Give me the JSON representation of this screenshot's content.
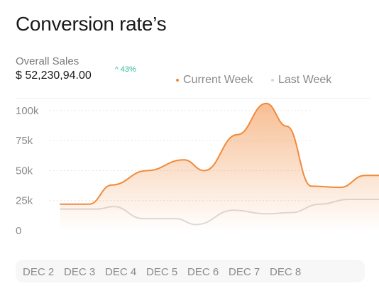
{
  "header": {
    "title": "Conversion rate’s",
    "sales_label": "Overall Sales",
    "sales_value": "$ 52,230,94.00",
    "growth": "43%"
  },
  "legend": {
    "current": "Current Week",
    "last": "Last Week"
  },
  "colors": {
    "current": "#f08a3c",
    "last": "#dcdcdc",
    "growth": "#2fb89a"
  },
  "chart_data": {
    "type": "area",
    "x": [
      "DEC 2",
      "",
      "DEC 3",
      "",
      "DEC 4",
      "",
      "DEC 5",
      "",
      "DEC 6",
      "",
      "DEC 7",
      "",
      "DEC 8",
      "",
      ""
    ],
    "categories": [
      "DEC 2",
      "DEC 3",
      "DEC 4",
      "DEC 5",
      "DEC 6",
      "DEC 7",
      "DEC 8"
    ],
    "yticks": [
      "0",
      "25k",
      "50k",
      "75k",
      "100k"
    ],
    "ylim": [
      0,
      110000
    ],
    "series": [
      {
        "name": "Current Week",
        "points": [
          [
            0,
            22000
          ],
          [
            0.7,
            22000
          ],
          [
            1.25,
            38000
          ],
          [
            2.1,
            50000
          ],
          [
            3.0,
            59000
          ],
          [
            3.5,
            50000
          ],
          [
            4.3,
            80000
          ],
          [
            5.0,
            106000
          ],
          [
            5.5,
            87000
          ],
          [
            6.1,
            37000
          ],
          [
            6.8,
            36000
          ],
          [
            7.4,
            46000
          ],
          [
            7.8,
            46000
          ]
        ],
        "area": true
      },
      {
        "name": "Last Week",
        "points": [
          [
            0,
            18000
          ],
          [
            0.9,
            18000
          ],
          [
            1.3,
            20000
          ],
          [
            2.0,
            10000
          ],
          [
            2.8,
            10000
          ],
          [
            3.3,
            5000
          ],
          [
            4.2,
            17000
          ],
          [
            5.0,
            14000
          ],
          [
            5.6,
            15000
          ],
          [
            6.3,
            22000
          ],
          [
            7.0,
            26000
          ],
          [
            7.8,
            26000
          ]
        ],
        "area": false
      }
    ]
  }
}
